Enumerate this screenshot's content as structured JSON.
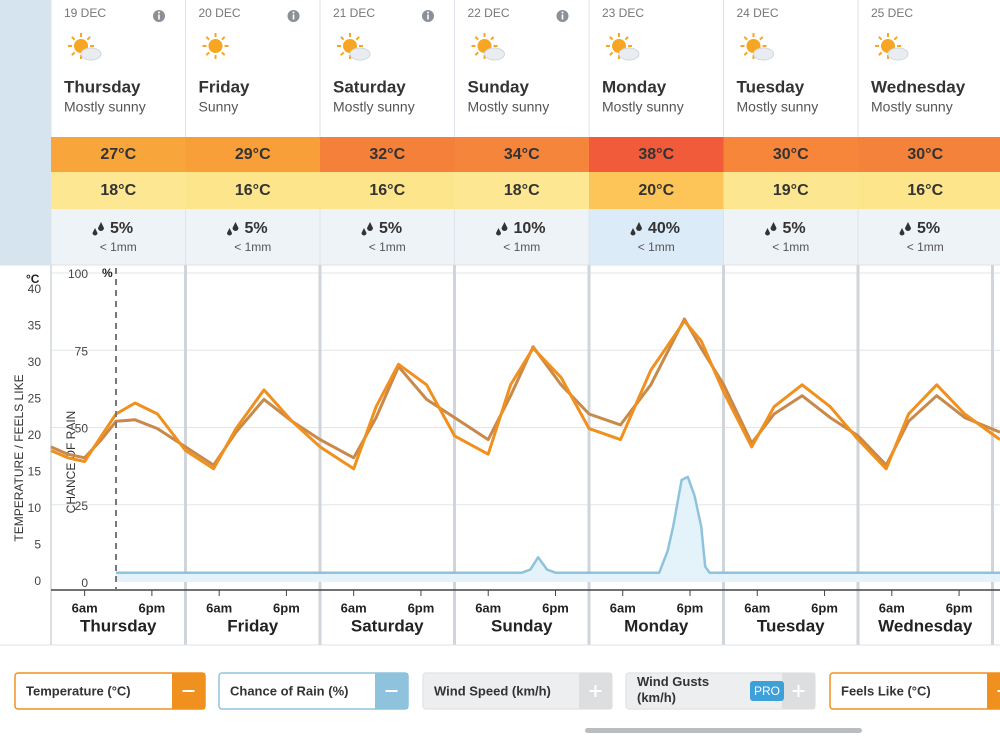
{
  "days": [
    {
      "date": "19 DEC",
      "name": "Thursday",
      "condition": "Mostly sunny",
      "high": "27°C",
      "low": "18°C",
      "rain_chance": "5%",
      "rain_amount": "< 1mm",
      "high_color": "#f8a53c",
      "low_color": "#fde792",
      "info": true
    },
    {
      "date": "20 DEC",
      "name": "Friday",
      "condition": "Sunny",
      "high": "29°C",
      "low": "16°C",
      "rain_chance": "5%",
      "rain_amount": "< 1mm",
      "high_color": "#f89f3a",
      "low_color": "#fde58c",
      "info": true
    },
    {
      "date": "21 DEC",
      "name": "Saturday",
      "condition": "Mostly sunny",
      "high": "32°C",
      "low": "16°C",
      "rain_chance": "5%",
      "rain_amount": "< 1mm",
      "high_color": "#f5803a",
      "low_color": "#fde58c",
      "info": true
    },
    {
      "date": "22 DEC",
      "name": "Sunday",
      "condition": "Mostly sunny",
      "high": "34°C",
      "low": "18°C",
      "rain_chance": "10%",
      "rain_amount": "< 1mm",
      "high_color": "#f5853b",
      "low_color": "#fde792",
      "info": true
    },
    {
      "date": "23 DEC",
      "name": "Monday",
      "condition": "Mostly sunny",
      "high": "38°C",
      "low": "20°C",
      "rain_chance": "40%",
      "rain_amount": "< 1mm",
      "high_color": "#f25b3a",
      "low_color": "#fdc558",
      "info": false
    },
    {
      "date": "24 DEC",
      "name": "Tuesday",
      "condition": "Mostly sunny",
      "high": "30°C",
      "low": "19°C",
      "rain_chance": "5%",
      "rain_amount": "< 1mm",
      "high_color": "#f7853a",
      "low_color": "#fde690",
      "info": false
    },
    {
      "date": "25 DEC",
      "name": "Wednesday",
      "condition": "Mostly sunny",
      "high": "30°C",
      "low": "16°C",
      "rain_chance": "5%",
      "rain_amount": "< 1mm",
      "high_color": "#f5823a",
      "low_color": "#fde58c",
      "info": false
    }
  ],
  "legend": [
    "Temperature (°C)",
    "Chance of Rain (%)",
    "Wind Speed (km/h)",
    "Wind Gusts (km/h)",
    "Feels Like (°C)"
  ],
  "pro": "PRO",
  "chart_data": {
    "type": "line",
    "y_unit": "°C",
    "ylabel": "TEMPERATURE / FEELS LIKE",
    "y2label": "CHANCE OF RAIN",
    "y2_unit": "%",
    "xlim": [
      0,
      169.3
    ],
    "ylim": [
      0,
      42.3
    ],
    "yticks": [
      0,
      5,
      10,
      15,
      20,
      25,
      30,
      35,
      40
    ],
    "y2lim": [
      0,
      100
    ],
    "y2ticks": [
      0,
      25,
      50,
      75,
      100
    ],
    "now_marker": 11.6,
    "xticks": [
      {
        "value": 6,
        "label": "6am"
      },
      {
        "value": 18,
        "label": "6pm"
      },
      {
        "value": 30,
        "label": "6am"
      },
      {
        "value": 42,
        "label": "6pm"
      },
      {
        "value": 54,
        "label": "6am"
      },
      {
        "value": 66,
        "label": "6pm"
      },
      {
        "value": 78,
        "label": "6am"
      },
      {
        "value": 90,
        "label": "6pm"
      },
      {
        "value": 102,
        "label": "6am"
      },
      {
        "value": 114,
        "label": "6pm"
      },
      {
        "value": 126,
        "label": "6am"
      },
      {
        "value": 138,
        "label": "6pm"
      },
      {
        "value": 150,
        "label": "6am"
      },
      {
        "value": 162,
        "label": "6pm"
      }
    ],
    "series": [
      {
        "name": "Feels Like",
        "color": "#c8894a",
        "x": [
          0,
          3,
          6,
          9,
          11.6,
          15,
          19,
          24,
          29,
          33,
          38,
          43,
          48,
          54,
          58,
          62,
          67,
          72,
          78,
          82,
          86,
          91,
          96,
          101.6,
          107,
          113,
          116,
          120,
          125,
          129,
          134,
          139,
          144,
          149,
          153,
          158,
          163,
          169.3
        ],
        "values": [
          18.5,
          17.5,
          17,
          19.5,
          22,
          22.2,
          21,
          18.5,
          16,
          20.5,
          25,
          22,
          19.5,
          17,
          22.5,
          29.5,
          25,
          22.5,
          19.5,
          25.5,
          32.2,
          27,
          23,
          21.5,
          27,
          36,
          32,
          27,
          19,
          23,
          25.5,
          22.5,
          20,
          16,
          22,
          25.5,
          22.5,
          20.5
        ]
      },
      {
        "name": "Temperature",
        "color": "#f0901e",
        "x": [
          0,
          3,
          6,
          9,
          11.6,
          15,
          19,
          24,
          29,
          33,
          38,
          43,
          48,
          54,
          58,
          62,
          67,
          72,
          78,
          82,
          86,
          91,
          96,
          101.6,
          107,
          113,
          116,
          120,
          125,
          129,
          134,
          139,
          144,
          149,
          153,
          158,
          163,
          169.3
        ],
        "values": [
          18,
          17,
          16.5,
          20,
          23,
          24.5,
          23,
          18,
          15.5,
          21,
          26.3,
          22,
          18.5,
          15.5,
          24,
          29.8,
          27,
          20,
          17.5,
          27,
          32,
          28,
          21,
          19.5,
          29,
          35.7,
          33,
          26,
          18.5,
          24,
          27,
          24,
          19.5,
          15.5,
          23,
          27,
          23,
          19.5
        ]
      },
      {
        "name": "Chance of Rain",
        "color": "#8fc3dd",
        "axis": "y2",
        "x": [
          11.6,
          84,
          85.5,
          86.9,
          88.5,
          90,
          108.5,
          110,
          111,
          112.5,
          113.6,
          114.8,
          116,
          116.7,
          117.5,
          169.3
        ],
        "values": [
          3,
          3,
          4,
          8,
          4,
          3,
          3,
          10,
          18,
          33,
          34,
          28,
          18,
          5,
          3,
          3
        ]
      }
    ]
  }
}
